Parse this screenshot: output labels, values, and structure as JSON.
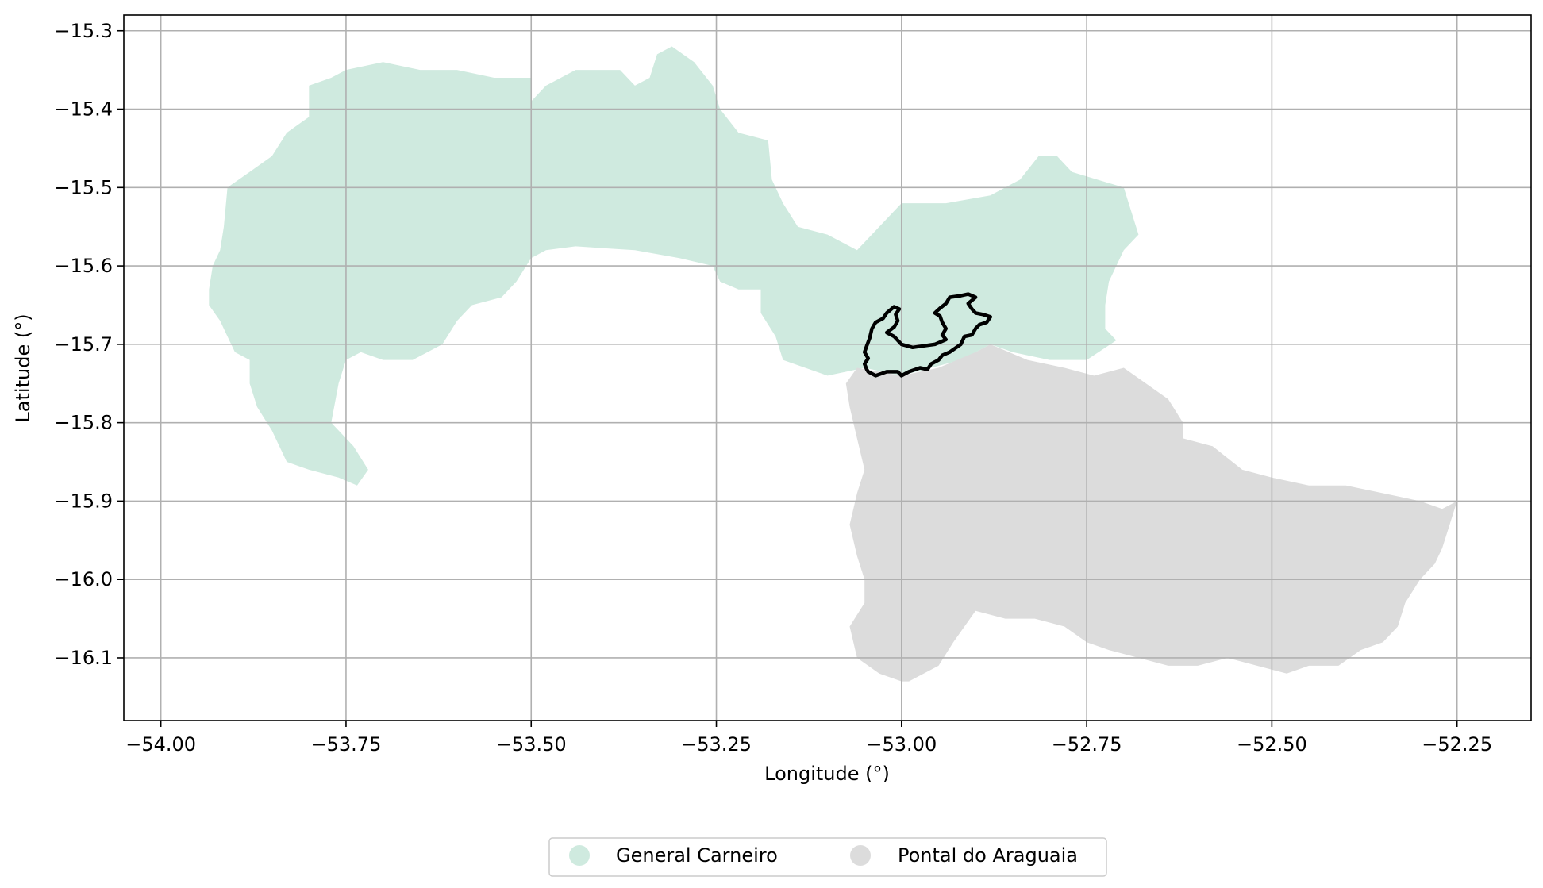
{
  "chart_data": {
    "type": "map",
    "xlabel": "Longitude (°)",
    "ylabel": "Latitude (°)",
    "xlim": [
      -54.05,
      -52.15
    ],
    "ylim": [
      -16.18,
      -15.28
    ],
    "x_ticks": [
      {
        "value": -54.0,
        "label": "−54.00"
      },
      {
        "value": -53.75,
        "label": "−53.75"
      },
      {
        "value": -53.5,
        "label": "−53.50"
      },
      {
        "value": -53.25,
        "label": "−53.25"
      },
      {
        "value": -53.0,
        "label": "−53.00"
      },
      {
        "value": -52.75,
        "label": "−52.75"
      },
      {
        "value": -52.5,
        "label": "−52.50"
      },
      {
        "value": -52.25,
        "label": "−52.25"
      }
    ],
    "y_ticks": [
      {
        "value": -15.3,
        "label": "−15.3"
      },
      {
        "value": -15.4,
        "label": "−15.4"
      },
      {
        "value": -15.5,
        "label": "−15.5"
      },
      {
        "value": -15.6,
        "label": "−15.6"
      },
      {
        "value": -15.7,
        "label": "−15.7"
      },
      {
        "value": -15.8,
        "label": "−15.8"
      },
      {
        "value": -15.9,
        "label": "−15.9"
      },
      {
        "value": -16.0,
        "label": "−16.0"
      },
      {
        "value": -16.1,
        "label": "−16.1"
      }
    ],
    "grid": true,
    "legend_position": "bottom-center",
    "regions": [
      {
        "name": "General Carneiro",
        "color": "#cfeadf",
        "polygon": [
          [
            -53.935,
            -15.63
          ],
          [
            -53.93,
            -15.6
          ],
          [
            -53.92,
            -15.58
          ],
          [
            -53.915,
            -15.55
          ],
          [
            -53.91,
            -15.5
          ],
          [
            -53.88,
            -15.48
          ],
          [
            -53.85,
            -15.46
          ],
          [
            -53.83,
            -15.43
          ],
          [
            -53.815,
            -15.42
          ],
          [
            -53.8,
            -15.41
          ],
          [
            -53.8,
            -15.37
          ],
          [
            -53.77,
            -15.36
          ],
          [
            -53.75,
            -15.35
          ],
          [
            -53.7,
            -15.34
          ],
          [
            -53.65,
            -15.35
          ],
          [
            -53.6,
            -15.35
          ],
          [
            -53.55,
            -15.36
          ],
          [
            -53.5,
            -15.36
          ],
          [
            -53.5,
            -15.39
          ],
          [
            -53.48,
            -15.37
          ],
          [
            -53.44,
            -15.35
          ],
          [
            -53.38,
            -15.35
          ],
          [
            -53.36,
            -15.37
          ],
          [
            -53.34,
            -15.36
          ],
          [
            -53.33,
            -15.33
          ],
          [
            -53.31,
            -15.32
          ],
          [
            -53.28,
            -15.34
          ],
          [
            -53.255,
            -15.37
          ],
          [
            -53.245,
            -15.4
          ],
          [
            -53.22,
            -15.43
          ],
          [
            -53.18,
            -15.44
          ],
          [
            -53.175,
            -15.49
          ],
          [
            -53.16,
            -15.52
          ],
          [
            -53.14,
            -15.55
          ],
          [
            -53.1,
            -15.56
          ],
          [
            -53.06,
            -15.58
          ],
          [
            -53.0,
            -15.52
          ],
          [
            -52.94,
            -15.52
          ],
          [
            -52.88,
            -15.51
          ],
          [
            -52.84,
            -15.49
          ],
          [
            -52.815,
            -15.46
          ],
          [
            -52.79,
            -15.46
          ],
          [
            -52.77,
            -15.48
          ],
          [
            -52.7,
            -15.5
          ],
          [
            -52.68,
            -15.56
          ],
          [
            -52.7,
            -15.58
          ],
          [
            -52.72,
            -15.62
          ],
          [
            -52.725,
            -15.65
          ],
          [
            -52.725,
            -15.68
          ],
          [
            -52.71,
            -15.695
          ],
          [
            -52.75,
            -15.72
          ],
          [
            -52.8,
            -15.72
          ],
          [
            -52.85,
            -15.71
          ],
          [
            -52.88,
            -15.7
          ],
          [
            -52.92,
            -15.72
          ],
          [
            -52.96,
            -15.73
          ],
          [
            -53.0,
            -15.74
          ],
          [
            -53.05,
            -15.73
          ],
          [
            -53.1,
            -15.74
          ],
          [
            -53.13,
            -15.73
          ],
          [
            -53.16,
            -15.72
          ],
          [
            -53.17,
            -15.69
          ],
          [
            -53.19,
            -15.66
          ],
          [
            -53.19,
            -15.63
          ],
          [
            -53.22,
            -15.63
          ],
          [
            -53.245,
            -15.62
          ],
          [
            -53.255,
            -15.6
          ],
          [
            -53.3,
            -15.59
          ],
          [
            -53.36,
            -15.58
          ],
          [
            -53.44,
            -15.575
          ],
          [
            -53.48,
            -15.58
          ],
          [
            -53.5,
            -15.59
          ],
          [
            -53.52,
            -15.62
          ],
          [
            -53.54,
            -15.64
          ],
          [
            -53.58,
            -15.65
          ],
          [
            -53.6,
            -15.67
          ],
          [
            -53.62,
            -15.7
          ],
          [
            -53.66,
            -15.72
          ],
          [
            -53.7,
            -15.72
          ],
          [
            -53.73,
            -15.71
          ],
          [
            -53.75,
            -15.72
          ],
          [
            -53.76,
            -15.75
          ],
          [
            -53.77,
            -15.8
          ],
          [
            -53.74,
            -15.83
          ],
          [
            -53.72,
            -15.86
          ],
          [
            -53.735,
            -15.88
          ],
          [
            -53.76,
            -15.87
          ],
          [
            -53.8,
            -15.86
          ],
          [
            -53.83,
            -15.85
          ],
          [
            -53.85,
            -15.81
          ],
          [
            -53.87,
            -15.78
          ],
          [
            -53.88,
            -15.75
          ],
          [
            -53.88,
            -15.72
          ],
          [
            -53.9,
            -15.71
          ],
          [
            -53.91,
            -15.69
          ],
          [
            -53.92,
            -15.67
          ],
          [
            -53.935,
            -15.65
          ]
        ]
      },
      {
        "name": "Pontal do Araguaia",
        "color": "#dcdcdc",
        "polygon": [
          [
            -53.06,
            -15.73
          ],
          [
            -53.0,
            -15.74
          ],
          [
            -52.95,
            -15.73
          ],
          [
            -52.9,
            -15.71
          ],
          [
            -52.88,
            -15.7
          ],
          [
            -52.83,
            -15.72
          ],
          [
            -52.78,
            -15.73
          ],
          [
            -52.74,
            -15.74
          ],
          [
            -52.7,
            -15.73
          ],
          [
            -52.67,
            -15.75
          ],
          [
            -52.64,
            -15.77
          ],
          [
            -52.62,
            -15.8
          ],
          [
            -52.62,
            -15.82
          ],
          [
            -52.58,
            -15.83
          ],
          [
            -52.54,
            -15.86
          ],
          [
            -52.5,
            -15.87
          ],
          [
            -52.45,
            -15.88
          ],
          [
            -52.4,
            -15.88
          ],
          [
            -52.35,
            -15.89
          ],
          [
            -52.3,
            -15.9
          ],
          [
            -52.27,
            -15.91
          ],
          [
            -52.25,
            -15.9
          ],
          [
            -52.26,
            -15.93
          ],
          [
            -52.27,
            -15.96
          ],
          [
            -52.28,
            -15.98
          ],
          [
            -52.3,
            -16.0
          ],
          [
            -52.32,
            -16.03
          ],
          [
            -52.33,
            -16.06
          ],
          [
            -52.35,
            -16.08
          ],
          [
            -52.38,
            -16.09
          ],
          [
            -52.41,
            -16.11
          ],
          [
            -52.45,
            -16.11
          ],
          [
            -52.48,
            -16.12
          ],
          [
            -52.52,
            -16.11
          ],
          [
            -52.56,
            -16.1
          ],
          [
            -52.6,
            -16.11
          ],
          [
            -52.64,
            -16.11
          ],
          [
            -52.68,
            -16.1
          ],
          [
            -52.72,
            -16.09
          ],
          [
            -52.75,
            -16.08
          ],
          [
            -52.78,
            -16.06
          ],
          [
            -52.82,
            -16.05
          ],
          [
            -52.86,
            -16.05
          ],
          [
            -52.9,
            -16.04
          ],
          [
            -52.93,
            -16.08
          ],
          [
            -52.95,
            -16.11
          ],
          [
            -52.99,
            -16.13
          ],
          [
            -53.0,
            -16.13
          ],
          [
            -53.03,
            -16.12
          ],
          [
            -53.06,
            -16.1
          ],
          [
            -53.07,
            -16.06
          ],
          [
            -53.05,
            -16.03
          ],
          [
            -53.05,
            -16.0
          ],
          [
            -53.06,
            -15.97
          ],
          [
            -53.07,
            -15.93
          ],
          [
            -53.06,
            -15.89
          ],
          [
            -53.05,
            -15.86
          ],
          [
            -53.06,
            -15.82
          ],
          [
            -53.07,
            -15.78
          ],
          [
            -53.075,
            -15.75
          ]
        ]
      }
    ],
    "highlight_outline": {
      "color": "#000000",
      "polygon": [
        [
          -53.045,
          -15.735
        ],
        [
          -53.035,
          -15.74
        ],
        [
          -53.02,
          -15.735
        ],
        [
          -53.005,
          -15.735
        ],
        [
          -53.0,
          -15.74
        ],
        [
          -52.99,
          -15.735
        ],
        [
          -52.975,
          -15.73
        ],
        [
          -52.965,
          -15.732
        ],
        [
          -52.96,
          -15.725
        ],
        [
          -52.95,
          -15.72
        ],
        [
          -52.945,
          -15.714
        ],
        [
          -52.935,
          -15.71
        ],
        [
          -52.92,
          -15.7
        ],
        [
          -52.915,
          -15.69
        ],
        [
          -52.905,
          -15.688
        ],
        [
          -52.9,
          -15.68
        ],
        [
          -52.895,
          -15.675
        ],
        [
          -52.885,
          -15.672
        ],
        [
          -52.88,
          -15.665
        ],
        [
          -52.89,
          -15.662
        ],
        [
          -52.9,
          -15.66
        ],
        [
          -52.905,
          -15.655
        ],
        [
          -52.91,
          -15.648
        ],
        [
          -52.9,
          -15.64
        ],
        [
          -52.91,
          -15.636
        ],
        [
          -52.92,
          -15.638
        ],
        [
          -52.935,
          -15.64
        ],
        [
          -52.94,
          -15.648
        ],
        [
          -52.948,
          -15.654
        ],
        [
          -52.955,
          -15.66
        ],
        [
          -52.948,
          -15.664
        ],
        [
          -52.945,
          -15.672
        ],
        [
          -52.94,
          -15.68
        ],
        [
          -52.945,
          -15.688
        ],
        [
          -52.94,
          -15.694
        ],
        [
          -52.955,
          -15.7
        ],
        [
          -52.97,
          -15.702
        ],
        [
          -52.985,
          -15.704
        ],
        [
          -53.0,
          -15.7
        ],
        [
          -53.01,
          -15.69
        ],
        [
          -53.02,
          -15.685
        ],
        [
          -53.01,
          -15.678
        ],
        [
          -53.005,
          -15.67
        ],
        [
          -53.008,
          -15.662
        ],
        [
          -53.003,
          -15.655
        ],
        [
          -53.01,
          -15.652
        ],
        [
          -53.02,
          -15.66
        ],
        [
          -53.025,
          -15.667
        ],
        [
          -53.035,
          -15.672
        ],
        [
          -53.04,
          -15.68
        ],
        [
          -53.043,
          -15.692
        ],
        [
          -53.047,
          -15.702
        ],
        [
          -53.05,
          -15.71
        ],
        [
          -53.045,
          -15.718
        ],
        [
          -53.05,
          -15.725
        ],
        [
          -53.047,
          -15.732
        ]
      ]
    }
  }
}
